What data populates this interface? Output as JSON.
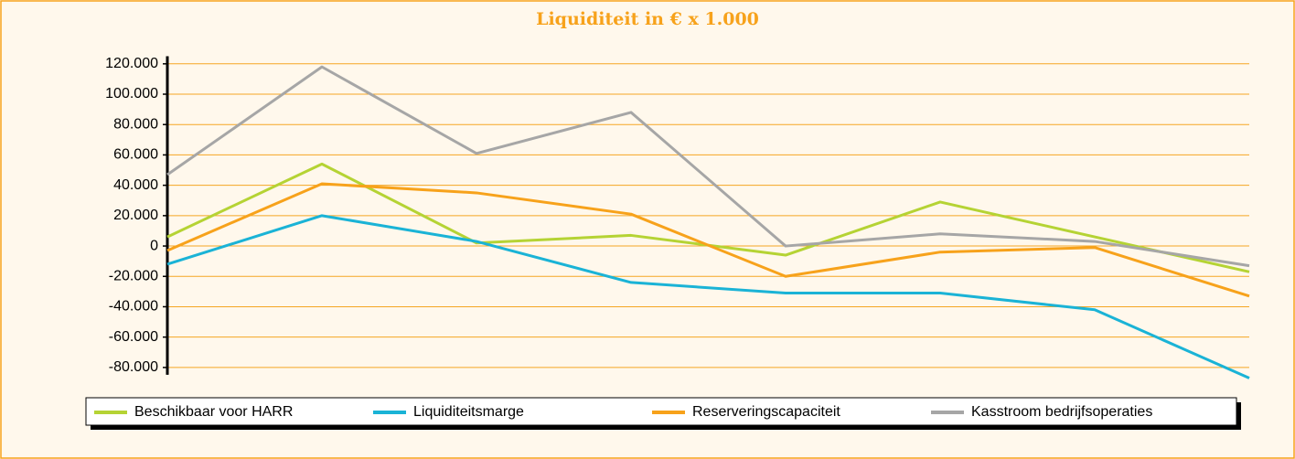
{
  "chart_data": {
    "type": "line",
    "title": "Liquiditeit in € x 1.000",
    "categories": [
      null,
      null,
      null,
      null,
      null,
      null,
      null,
      null
    ],
    "series": [
      {
        "name": "Beschikbaar voor HARR",
        "color": "#b5d334",
        "values": [
          6000,
          54000,
          2000,
          7000,
          -6000,
          29000,
          6000,
          -17000
        ]
      },
      {
        "name": "Liquiditeitsmarge",
        "color": "#1ab3d6",
        "values": [
          -12000,
          20000,
          3000,
          -24000,
          -31000,
          -31000,
          -42000,
          -87000
        ]
      },
      {
        "name": "Reserveringscapaciteit",
        "color": "#f7a21b",
        "values": [
          -3000,
          41000,
          35000,
          21000,
          -20000,
          -4000,
          -1000,
          -33000
        ]
      },
      {
        "name": "Kasstroom bedrijfsoperaties",
        "color": "#a6a6a6",
        "values": [
          47000,
          118000,
          61000,
          88000,
          0,
          8000,
          3000,
          -13000
        ]
      }
    ],
    "ylim": [
      -90000,
      125000
    ],
    "yticks": [
      {
        "value": 120000,
        "label": "120.000"
      },
      {
        "value": 100000,
        "label": "100.000"
      },
      {
        "value": 80000,
        "label": "80.000"
      },
      {
        "value": 60000,
        "label": "60.000"
      },
      {
        "value": 40000,
        "label": "40.000"
      },
      {
        "value": 20000,
        "label": "20.000"
      },
      0,
      {
        "value": -20000,
        "label": "-20.000"
      },
      {
        "value": -40000,
        "label": "-40.000"
      },
      {
        "value": -60000,
        "label": "-60.000"
      },
      {
        "value": -80000,
        "label": "-80.000"
      }
    ],
    "grid": true,
    "grid_color": "#f5a623"
  }
}
